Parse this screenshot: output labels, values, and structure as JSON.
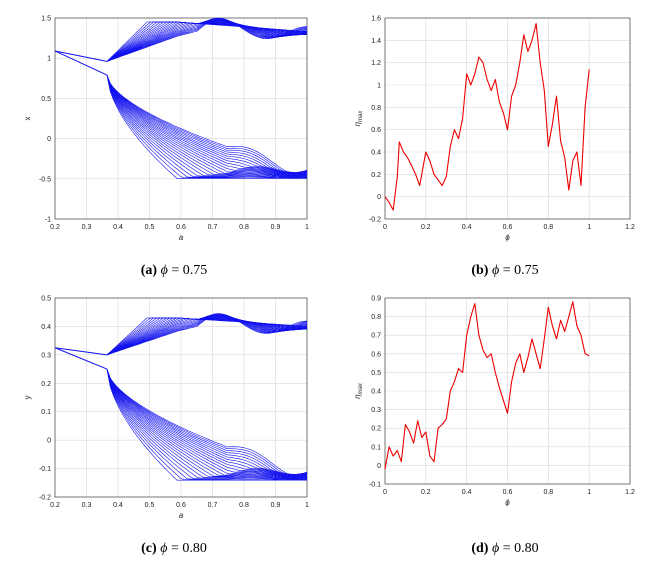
{
  "captions": [
    {
      "label": "(a)",
      "text": " = 0.75",
      "symbol": "ϕ"
    },
    {
      "label": "(b)",
      "text": " = 0.75",
      "symbol": "ϕ"
    },
    {
      "label": "(c)",
      "text": " = 0.80",
      "symbol": "ϕ"
    },
    {
      "label": "(d)",
      "text": " = 0.80",
      "symbol": "ϕ"
    }
  ],
  "chart_data": [
    {
      "id": "a",
      "type": "line",
      "xlabel": "a",
      "ylabel": "x",
      "xlim": [
        0.2,
        1.0
      ],
      "ylim": [
        -1,
        1.5
      ],
      "xticks": [
        "0.2",
        "0.3",
        "0.4",
        "0.5",
        "0.6",
        "0.7",
        "0.8",
        "0.9",
        "1"
      ],
      "yticks": [
        "-1",
        "-0.5",
        "0",
        "0.5",
        "1",
        "1.5"
      ],
      "grid": true,
      "color": "#1010ee",
      "description_data": {
        "stem_start": [
          0.2,
          1.09
        ],
        "split_at": 0.365,
        "upper_stem_end": 0.96,
        "lower_branch_start": 0.79,
        "upper_peak": [
          0.5,
          1.45
        ],
        "upper_end": 1.25,
        "lower_end": -0.42
      }
    },
    {
      "id": "b",
      "type": "line",
      "xlabel": "ϕ",
      "ylabel": "η_max",
      "xlim": [
        0,
        1.2
      ],
      "ylim": [
        -0.2,
        1.6
      ],
      "xticks": [
        "0",
        "0.2",
        "0.4",
        "0.6",
        "0.8",
        "1",
        "1.2"
      ],
      "yticks": [
        "-0.2",
        "0",
        "0.2",
        "0.4",
        "0.6",
        "0.8",
        "1",
        "1.2",
        "1.4",
        "1.6"
      ],
      "grid": true,
      "color": "#ee0000",
      "x": [
        0,
        0.02,
        0.04,
        0.06,
        0.07,
        0.09,
        0.11,
        0.13,
        0.15,
        0.17,
        0.2,
        0.22,
        0.24,
        0.26,
        0.28,
        0.3,
        0.32,
        0.34,
        0.36,
        0.38,
        0.4,
        0.42,
        0.44,
        0.46,
        0.48,
        0.5,
        0.52,
        0.54,
        0.56,
        0.58,
        0.6,
        0.62,
        0.64,
        0.66,
        0.68,
        0.7,
        0.72,
        0.74,
        0.76,
        0.78,
        0.8,
        0.82,
        0.84,
        0.86,
        0.88,
        0.9,
        0.92,
        0.94,
        0.96,
        0.98,
        1.0
      ],
      "y": [
        0.0,
        -0.05,
        -0.12,
        0.18,
        0.49,
        0.4,
        0.35,
        0.28,
        0.2,
        0.1,
        0.4,
        0.32,
        0.2,
        0.15,
        0.1,
        0.18,
        0.45,
        0.6,
        0.52,
        0.7,
        1.1,
        1.0,
        1.1,
        1.25,
        1.2,
        1.05,
        0.95,
        1.05,
        0.85,
        0.75,
        0.6,
        0.9,
        1.0,
        1.2,
        1.45,
        1.3,
        1.4,
        1.55,
        1.2,
        0.95,
        0.45,
        0.65,
        0.9,
        0.5,
        0.35,
        0.06,
        0.32,
        0.4,
        0.1,
        0.8,
        1.14
      ]
    },
    {
      "id": "c",
      "type": "line",
      "xlabel": "a",
      "ylabel": "y",
      "xlim": [
        0.2,
        1.0
      ],
      "ylim": [
        -0.2,
        0.5
      ],
      "xticks": [
        "0.2",
        "0.3",
        "0.4",
        "0.5",
        "0.6",
        "0.7",
        "0.8",
        "0.9",
        "1"
      ],
      "yticks": [
        "-0.2",
        "-0.1",
        "0",
        "0.1",
        "0.2",
        "0.3",
        "0.4",
        "0.5"
      ],
      "grid": true,
      "color": "#1010ee",
      "description_data": {
        "stem_start": [
          0.2,
          0.325
        ],
        "split_at": 0.365,
        "upper_stem_end": 0.3,
        "lower_branch_start": 0.25,
        "upper_peak": [
          0.5,
          0.43
        ],
        "upper_end": 0.38,
        "lower_end": -0.12
      }
    },
    {
      "id": "d",
      "type": "line",
      "xlabel": "ϕ",
      "ylabel": "η_max",
      "xlim": [
        0,
        1.2
      ],
      "ylim": [
        -0.1,
        0.9
      ],
      "xticks": [
        "0",
        "0.2",
        "0.4",
        "0.6",
        "0.8",
        "1",
        "1.2"
      ],
      "yticks": [
        "-0.1",
        "0",
        "0.1",
        "0.2",
        "0.3",
        "0.4",
        "0.5",
        "0.6",
        "0.7",
        "0.8",
        "0.9"
      ],
      "grid": true,
      "color": "#ee0000",
      "x": [
        0,
        0.02,
        0.04,
        0.06,
        0.08,
        0.1,
        0.12,
        0.14,
        0.16,
        0.18,
        0.2,
        0.22,
        0.24,
        0.26,
        0.28,
        0.3,
        0.32,
        0.34,
        0.36,
        0.38,
        0.4,
        0.42,
        0.44,
        0.46,
        0.48,
        0.5,
        0.52,
        0.54,
        0.56,
        0.58,
        0.6,
        0.62,
        0.64,
        0.66,
        0.68,
        0.7,
        0.72,
        0.74,
        0.76,
        0.78,
        0.8,
        0.82,
        0.84,
        0.86,
        0.88,
        0.9,
        0.92,
        0.94,
        0.96,
        0.98,
        1.0
      ],
      "y": [
        -0.02,
        0.1,
        0.05,
        0.08,
        0.02,
        0.22,
        0.18,
        0.12,
        0.24,
        0.15,
        0.18,
        0.05,
        0.02,
        0.2,
        0.22,
        0.25,
        0.4,
        0.45,
        0.52,
        0.5,
        0.7,
        0.8,
        0.87,
        0.7,
        0.62,
        0.58,
        0.6,
        0.5,
        0.42,
        0.35,
        0.28,
        0.45,
        0.55,
        0.6,
        0.5,
        0.58,
        0.68,
        0.6,
        0.52,
        0.68,
        0.85,
        0.75,
        0.68,
        0.78,
        0.72,
        0.8,
        0.88,
        0.75,
        0.7,
        0.6,
        0.59
      ]
    }
  ]
}
